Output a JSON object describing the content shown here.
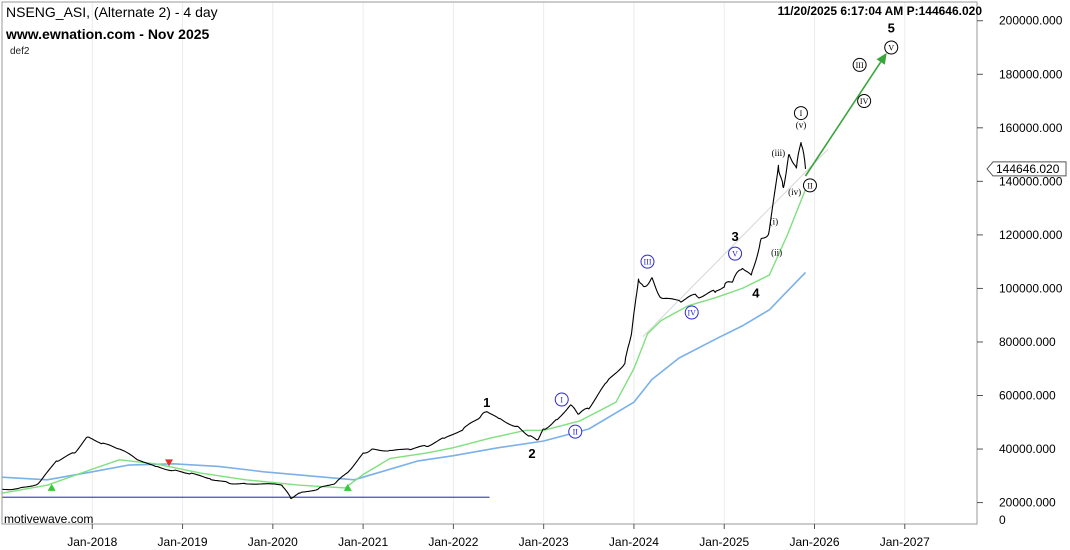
{
  "header": {
    "symbol_line": "NSENG_ASI, (Alternate 2) - 4 day",
    "website_line": "www.ewnation.com  - Nov 2025",
    "study_label": "def2",
    "info_line": "11/20/2025 6:17:04 AM  P:144646.020"
  },
  "footer": {
    "brand": "motivewave.com"
  },
  "colors": {
    "price": "#000000",
    "fast_ma": "#7fe07f",
    "slow_ma": "#7ab1ea",
    "baseline": "#4a4ad0",
    "arrow": "#3aa63a",
    "trendline": "#d6d6d6",
    "wave_blue": "#2a2ad0",
    "wave_black": "#000000",
    "signal_up": "#33cc33",
    "signal_down": "#e03030"
  },
  "chart_data": {
    "type": "line",
    "x_tick_labels": [
      "Jan-2018",
      "Jan-2019",
      "Jan-2020",
      "Jan-2021",
      "Jan-2022",
      "Jan-2023",
      "Jan-2024",
      "Jan-2025",
      "Jan-2026",
      "Jan-2027"
    ],
    "x_tick_years": [
      2018,
      2019,
      2020,
      2021,
      2022,
      2023,
      2024,
      2025,
      2026,
      2027
    ],
    "xlim": [
      2017.0,
      2027.8
    ],
    "y_tick_labels": [
      "20000.000",
      "40000.000",
      "60000.000",
      "80000.000",
      "100000.000",
      "120000.000",
      "140000.000",
      "160000.000",
      "180000.000",
      "200000.000"
    ],
    "y_tick_values": [
      20000,
      40000,
      60000,
      80000,
      100000,
      120000,
      140000,
      160000,
      180000,
      200000
    ],
    "ylim": [
      12000,
      207000
    ],
    "last_price_label": "144646.020",
    "scale_bottom_label": "0",
    "series": [
      {
        "role": "price",
        "x": [
          2017.0,
          2017.2,
          2017.4,
          2017.6,
          2017.8,
          2017.95,
          2018.1,
          2018.3,
          2018.5,
          2018.7,
          2018.9,
          2019.1,
          2019.3,
          2019.5,
          2019.7,
          2019.9,
          2020.1,
          2020.2,
          2020.3,
          2020.5,
          2020.7,
          2020.85,
          2021.0,
          2021.1,
          2021.3,
          2021.5,
          2021.7,
          2021.9,
          2022.1,
          2022.3,
          2022.37,
          2022.5,
          2022.7,
          2022.85,
          2022.93,
          2023.0,
          2023.15,
          2023.3,
          2023.38,
          2023.5,
          2023.7,
          2023.9,
          2023.98,
          2024.05,
          2024.1,
          2024.2,
          2024.3,
          2024.5,
          2024.7,
          2024.9,
          2025.0,
          2025.1,
          2025.2,
          2025.3,
          2025.4,
          2025.5,
          2025.6,
          2025.65,
          2025.72,
          2025.8,
          2025.85,
          2025.9
        ],
        "y": [
          25000,
          25500,
          27000,
          35500,
          38500,
          44500,
          42000,
          40000,
          36000,
          33500,
          32000,
          31000,
          29000,
          27500,
          27000,
          27000,
          26500,
          21500,
          23500,
          25000,
          27500,
          32000,
          38500,
          40000,
          39500,
          40000,
          41000,
          44000,
          47000,
          52000,
          54000,
          51500,
          48500,
          45000,
          43500,
          47500,
          51000,
          56500,
          53000,
          55000,
          65000,
          72000,
          85000,
          103500,
          101000,
          104000,
          96500,
          95500,
          97000,
          98500,
          100500,
          103000,
          107500,
          105000,
          117500,
          122000,
          146000,
          138000,
          150000,
          145000,
          154500,
          144646
        ]
      },
      {
        "role": "fast_ma",
        "x": [
          2017.0,
          2017.5,
          2018.0,
          2018.3,
          2018.7,
          2019.2,
          2019.7,
          2020.3,
          2020.8,
          2021.0,
          2021.3,
          2021.7,
          2022.0,
          2022.4,
          2022.8,
          2023.0,
          2023.4,
          2023.8,
          2024.0,
          2024.15,
          2024.3,
          2024.6,
          2024.9,
          2025.2,
          2025.5,
          2025.7,
          2025.9
        ],
        "y": [
          23500,
          26500,
          32500,
          36000,
          34500,
          31000,
          28500,
          26500,
          25500,
          30500,
          36500,
          38500,
          40500,
          44000,
          47000,
          47000,
          50500,
          57500,
          70000,
          83000,
          88000,
          93500,
          96500,
          100000,
          105000,
          120000,
          137000
        ]
      },
      {
        "role": "slow_ma",
        "x": [
          2017.0,
          2017.5,
          2018.0,
          2018.4,
          2018.9,
          2019.4,
          2019.9,
          2020.4,
          2020.9,
          2021.2,
          2021.6,
          2022.0,
          2022.5,
          2023.0,
          2023.5,
          2024.0,
          2024.2,
          2024.5,
          2024.9,
          2025.2,
          2025.5,
          2025.7,
          2025.9
        ],
        "y": [
          29500,
          28500,
          31500,
          34000,
          34500,
          33500,
          31500,
          30000,
          28500,
          31500,
          35500,
          37500,
          40500,
          43000,
          47500,
          57500,
          66000,
          74000,
          81000,
          86000,
          92000,
          99000,
          106000
        ]
      }
    ],
    "baseline_y": 22000,
    "baseline_x": [
      2017.0,
      2022.4
    ],
    "trendline": {
      "x": [
        2024.1,
        2026.15
      ],
      "y": [
        82000,
        152000
      ]
    },
    "projection_arrow": {
      "x": [
        2025.9,
        2026.8
      ],
      "y": [
        142000,
        188000
      ]
    },
    "wave_labels": [
      {
        "text": "1",
        "x": 2022.37,
        "y": 57500,
        "style": "plain"
      },
      {
        "text": "2",
        "x": 2022.87,
        "y": 38500,
        "style": "plain"
      },
      {
        "text": "I",
        "x": 2023.2,
        "y": 58500,
        "style": "circle-blue"
      },
      {
        "text": "II",
        "x": 2023.35,
        "y": 46500,
        "style": "circle-blue"
      },
      {
        "text": "III",
        "x": 2024.15,
        "y": 110000,
        "style": "circle-blue"
      },
      {
        "text": "IV",
        "x": 2024.64,
        "y": 91000,
        "style": "circle-blue"
      },
      {
        "text": "V",
        "x": 2025.12,
        "y": 113000,
        "style": "circle-blue"
      },
      {
        "text": "3",
        "x": 2025.12,
        "y": 119500,
        "style": "plain"
      },
      {
        "text": "4",
        "x": 2025.35,
        "y": 98500,
        "style": "plain"
      },
      {
        "text": "i",
        "x": 2025.55,
        "y": 125000,
        "style": "small"
      },
      {
        "text": "ii",
        "x": 2025.58,
        "y": 113500,
        "style": "small"
      },
      {
        "text": "iii",
        "x": 2025.6,
        "y": 150500,
        "style": "small"
      },
      {
        "text": "iv",
        "x": 2025.78,
        "y": 136000,
        "style": "small"
      },
      {
        "text": "v",
        "x": 2025.85,
        "y": 161000,
        "style": "small"
      },
      {
        "text": "I",
        "x": 2025.85,
        "y": 165500,
        "style": "circle-black"
      },
      {
        "text": "II",
        "x": 2025.95,
        "y": 138500,
        "style": "circle-black"
      },
      {
        "text": "III",
        "x": 2026.5,
        "y": 183500,
        "style": "circle-black"
      },
      {
        "text": "IV",
        "x": 2026.55,
        "y": 170000,
        "style": "circle-black"
      },
      {
        "text": "V",
        "x": 2026.85,
        "y": 190000,
        "style": "circle-black"
      },
      {
        "text": "5",
        "x": 2026.85,
        "y": 197500,
        "style": "plain"
      }
    ],
    "signals": [
      {
        "type": "up",
        "x": 2017.55,
        "y": 25500
      },
      {
        "type": "down",
        "x": 2018.85,
        "y": 35000
      },
      {
        "type": "up",
        "x": 2020.83,
        "y": 25500
      }
    ]
  }
}
